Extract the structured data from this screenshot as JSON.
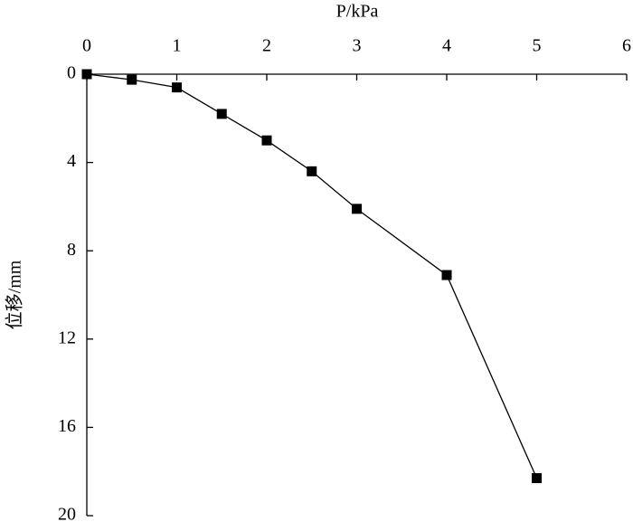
{
  "chart_data": {
    "type": "line",
    "x_label": "P/kPa",
    "y_label": "位移/mm",
    "x": [
      0,
      0.5,
      1,
      1.5,
      2,
      2.5,
      3,
      4,
      5
    ],
    "series": [
      {
        "color": "#000000",
        "values": [
          0,
          0.25,
          0.6,
          1.8,
          3.0,
          4.4,
          6.1,
          9.1,
          18.3
        ]
      }
    ],
    "xlim": [
      0,
      6
    ],
    "xticks": [
      0,
      1,
      2,
      3,
      4,
      5,
      6
    ],
    "ylim": [
      0,
      20
    ],
    "yticks": [
      0,
      4,
      8,
      12,
      16,
      20
    ],
    "x_axis_position": "top",
    "y_inverted": true,
    "marker": "square",
    "grid": false
  }
}
